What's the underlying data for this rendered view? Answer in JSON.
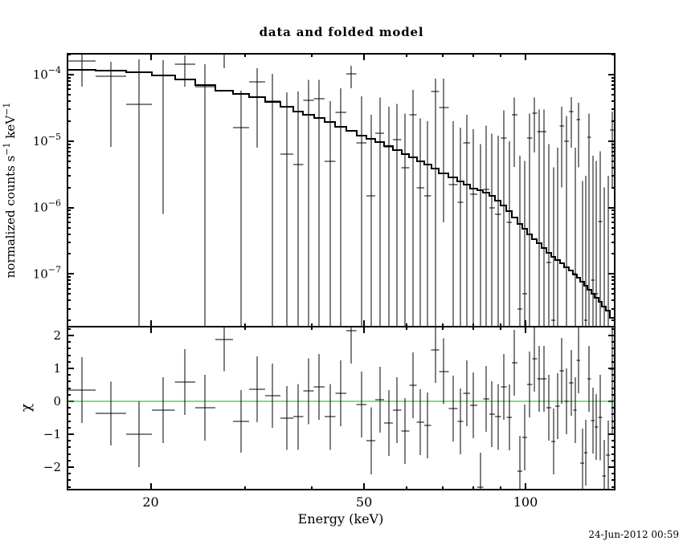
{
  "title": "data and folded model",
  "timestamp": "24-Jun-2012 00:59",
  "chart_data": {
    "type": "line",
    "subtype": "xray-spectrum-with-residuals",
    "title": "data and folded model",
    "xlabel": "Energy (keV)",
    "ylabel_top": {
      "pre": "normalized counts s",
      "sup1": "−1",
      "mid": " keV",
      "sup2": "−1"
    },
    "ylabel_bottom": "χ",
    "x_scale": "log",
    "xlim": [
      14.0,
      146.7
    ],
    "x_major_ticks": [
      20,
      50,
      100
    ],
    "x_major_labels": [
      "20",
      "50",
      "100"
    ],
    "x_minor_ticks": [
      30,
      40,
      60,
      70,
      80,
      90
    ],
    "top_panel": {
      "y_scale": "log",
      "ylim": [
        1.62e-08,
        0.000206
      ],
      "y_major_ticks": [
        0.0001,
        1e-05,
        1e-06,
        1e-07
      ],
      "y_major_labels": [
        [
          "10",
          "−4"
        ],
        [
          "10",
          "−5"
        ],
        [
          "10",
          "−6"
        ],
        [
          "10",
          "−7"
        ]
      ]
    },
    "bottom_panel": {
      "ylim": [
        -2.68,
        2.27
      ],
      "y_major_ticks": [
        2,
        1,
        0,
        -1,
        -2
      ],
      "y_major_labels": [
        "2",
        "1",
        "0",
        "−1",
        "−2"
      ],
      "y_minor_step": 0.2,
      "zero_line_value": 0,
      "zero_line_color": "#00C000"
    },
    "model_color": "#000000",
    "data_color": "#000000",
    "model_anchors": [
      [
        14,
        0.000117
      ],
      [
        16,
        0.000116
      ],
      [
        18,
        0.000113
      ],
      [
        20.5,
        0.000102
      ],
      [
        22,
        9.3e-05
      ],
      [
        24,
        8e-05
      ],
      [
        26,
        6.6e-05
      ],
      [
        28,
        5.5e-05
      ],
      [
        31.5,
        4.6e-05
      ],
      [
        34,
        3.8e-05
      ],
      [
        38,
        2.75e-05
      ],
      [
        42,
        2.1e-05
      ],
      [
        46,
        1.55e-05
      ],
      [
        50,
        1.18e-05
      ],
      [
        55,
        8.8e-06
      ],
      [
        60,
        6.3e-06
      ],
      [
        65,
        4.6e-06
      ],
      [
        70,
        3.4e-06
      ],
      [
        75,
        2.55e-06
      ],
      [
        80,
        1.95e-06
      ],
      [
        86,
        1.6e-06
      ],
      [
        92,
        1e-06
      ],
      [
        97,
        6e-07
      ],
      [
        102,
        3.9e-07
      ],
      [
        107,
        2.7e-07
      ],
      [
        112,
        1.9e-07
      ],
      [
        117,
        1.45e-07
      ],
      [
        122,
        1.1e-07
      ],
      [
        127,
        8e-08
      ],
      [
        132,
        5.6e-08
      ],
      [
        137,
        4e-08
      ],
      [
        142,
        2.9e-08
      ],
      [
        146.7,
        1.9e-08
      ]
    ],
    "data_points": [
      [
        14.0,
        15.8,
        0.00016,
        0.00021,
        6.6e-05
      ],
      [
        15.8,
        18.0,
        9.4e-05,
        0.000155,
        8.2e-06
      ],
      [
        18.0,
        20.1,
        3.6e-05,
        0.00017,
        0
      ],
      [
        20.1,
        22.2,
        9.7e-05,
        0.000165,
        8e-07
      ],
      [
        22.2,
        24.2,
        0.000144,
        0.000195,
        6.6e-05
      ],
      [
        24.2,
        26.4,
        6.6e-05,
        0.000144,
        0
      ],
      [
        26.4,
        28.5,
        0.00023,
        0.00026,
        0.000125
      ],
      [
        28.5,
        30.5,
        1.6e-05,
        5.7e-05,
        0
      ],
      [
        30.5,
        32.7,
        7.8e-05,
        0.000125,
        8e-06
      ],
      [
        32.7,
        34.9,
        4e-05,
        0.000103,
        0
      ],
      [
        34.9,
        36.9,
        6.4e-06,
        5.4e-05,
        0
      ],
      [
        36.9,
        38.5,
        4.4e-06,
        5.6e-05,
        0
      ],
      [
        38.5,
        40.3,
        4.1e-05,
        8.3e-05,
        0
      ],
      [
        40.3,
        42.2,
        4.3e-05,
        8.3e-05,
        0
      ],
      [
        42.2,
        44.2,
        5e-06,
        4e-05,
        0
      ],
      [
        44.2,
        46.3,
        2.7e-05,
        6.2e-05,
        0
      ],
      [
        46.3,
        48.4,
        0.000103,
        0.000136,
        6.2e-05
      ],
      [
        48.4,
        50.5,
        9.4e-06,
        4.7e-05,
        0
      ],
      [
        50.5,
        52.5,
        1.5e-06,
        2.5e-05,
        0
      ],
      [
        52.5,
        54.5,
        1.3e-05,
        4.5e-05,
        0
      ],
      [
        54.5,
        56.6,
        8.2e-06,
        3.3e-05,
        0
      ],
      [
        56.6,
        58.7,
        1.04e-05,
        3.6e-05,
        0
      ],
      [
        58.7,
        60.7,
        4e-06,
        2.6e-05,
        0
      ],
      [
        60.7,
        62.7,
        2.5e-05,
        5.9e-05,
        0
      ],
      [
        62.7,
        64.7,
        2e-06,
        2.2e-05,
        0
      ],
      [
        64.7,
        66.7,
        1.5e-06,
        2e-05,
        0
      ],
      [
        66.7,
        69.0,
        5.5e-05,
        8.7e-05,
        0
      ],
      [
        69.0,
        71.9,
        3.2e-05,
        8.7e-05,
        6e-07
      ],
      [
        71.9,
        74.7,
        2.2e-06,
        2e-05,
        0
      ],
      [
        74.7,
        76.6,
        1.2e-06,
        1.6e-05,
        0
      ],
      [
        76.6,
        78.8,
        9.5e-06,
        2.5e-05,
        0
      ],
      [
        78.8,
        81.3,
        1.6e-06,
        1.5e-05,
        0
      ],
      [
        81.3,
        83.4,
        1.5e-08,
        9e-06,
        0
      ],
      [
        83.4,
        85.6,
        1.9e-06,
        1.7e-05,
        0
      ],
      [
        85.6,
        87.7,
        1e-06,
        1.3e-05,
        0
      ],
      [
        87.7,
        90.0,
        8e-07,
        1.2e-05,
        0
      ],
      [
        90.0,
        92.2,
        1.1e-05,
        2.9e-05,
        0
      ],
      [
        92.2,
        94.3,
        6e-07,
        1e-05,
        0
      ],
      [
        94.3,
        96.6,
        2.5e-05,
        4.5e-05,
        4.1e-06
      ],
      [
        96.6,
        98.6,
        3e-08,
        6e-06,
        0
      ],
      [
        98.6,
        100.7,
        5e-08,
        5e-06,
        0
      ],
      [
        100.7,
        102.9,
        1.1e-05,
        2.6e-05,
        0
      ],
      [
        102.9,
        105.1,
        2.6e-05,
        4.5e-05,
        6.7e-06
      ],
      [
        105.1,
        107.1,
        1.4e-05,
        3e-05,
        0
      ],
      [
        107.1,
        109.4,
        1.4e-05,
        3e-05,
        0
      ],
      [
        109.4,
        111.7,
        1.5e-07,
        9e-06,
        0
      ],
      [
        111.7,
        113.6,
        2e-08,
        4e-06,
        0
      ],
      [
        113.6,
        115.8,
        1.6e-07,
        8e-06,
        0
      ],
      [
        115.8,
        118.1,
        1.7e-05,
        3.3e-05,
        2e-06
      ],
      [
        118.1,
        120.4,
        1e-05,
        2.4e-05,
        0
      ],
      [
        120.4,
        122.7,
        2.8e-05,
        4.6e-05,
        8e-06
      ],
      [
        122.7,
        124.6,
        1e-07,
        8e-06,
        0
      ],
      [
        124.6,
        126.5,
        2.1e-05,
        3.8e-05,
        4e-06
      ],
      [
        126.5,
        128.7,
        1e-08,
        2.5e-06,
        0
      ],
      [
        128.7,
        130.5,
        2e-08,
        3e-06,
        0
      ],
      [
        130.5,
        132.5,
        1.15e-05,
        2.6e-05,
        0
      ],
      [
        132.5,
        134.6,
        8e-08,
        6e-06,
        0
      ],
      [
        134.6,
        136.7,
        5e-08,
        5e-06,
        0
      ],
      [
        136.7,
        139.0,
        6.1e-07,
        7e-06,
        0
      ],
      [
        139.0,
        141.3,
        1e-08,
        2e-06,
        0
      ],
      [
        141.3,
        143.6,
        1e-08,
        3e-06,
        0
      ],
      [
        143.6,
        146.7,
        1.45e-05,
        2.8e-05,
        2e-06
      ]
    ],
    "residuals": [
      [
        14.0,
        15.8,
        0.34,
        1.0
      ],
      [
        15.8,
        18.0,
        -0.37,
        0.97
      ],
      [
        18.0,
        20.1,
        -1.0,
        1.0
      ],
      [
        20.1,
        22.2,
        -0.27,
        1.0
      ],
      [
        22.2,
        24.2,
        0.59,
        1.0
      ],
      [
        24.2,
        26.4,
        -0.2,
        1.0
      ],
      [
        26.4,
        28.5,
        1.88,
        0.97
      ],
      [
        28.5,
        30.5,
        -0.61,
        0.95
      ],
      [
        30.5,
        32.7,
        0.37,
        1.0
      ],
      [
        32.7,
        34.9,
        0.17,
        0.98
      ],
      [
        34.9,
        36.9,
        -0.51,
        0.97
      ],
      [
        36.9,
        38.5,
        -0.47,
        1.0
      ],
      [
        38.5,
        40.3,
        0.31,
        1.0
      ],
      [
        40.3,
        42.2,
        0.44,
        1.0
      ],
      [
        42.2,
        44.2,
        -0.47,
        1.0
      ],
      [
        44.2,
        46.3,
        0.24,
        1.0
      ],
      [
        46.3,
        48.4,
        2.15,
        1.0
      ],
      [
        48.4,
        50.5,
        -0.1,
        1.0
      ],
      [
        50.5,
        52.5,
        -1.2,
        1.02
      ],
      [
        52.5,
        54.5,
        0.05,
        1.0
      ],
      [
        54.5,
        56.6,
        -0.66,
        1.0
      ],
      [
        56.6,
        58.7,
        -0.27,
        1.0
      ],
      [
        58.7,
        60.7,
        -0.9,
        1.0
      ],
      [
        60.7,
        62.7,
        0.49,
        1.0
      ],
      [
        62.7,
        64.7,
        -0.63,
        1.0
      ],
      [
        64.7,
        66.7,
        -0.73,
        1.0
      ],
      [
        66.7,
        69.0,
        1.56,
        1.0
      ],
      [
        69.0,
        71.9,
        0.91,
        1.0
      ],
      [
        71.9,
        74.7,
        -0.22,
        1.0
      ],
      [
        74.7,
        76.6,
        -0.61,
        1.0
      ],
      [
        76.6,
        78.8,
        0.24,
        1.0
      ],
      [
        78.8,
        81.3,
        -0.12,
        1.0
      ],
      [
        81.3,
        83.4,
        -2.61,
        1.05
      ],
      [
        83.4,
        85.6,
        0.07,
        1.0
      ],
      [
        85.6,
        87.7,
        -0.39,
        1.0
      ],
      [
        87.7,
        90.0,
        -0.47,
        1.0
      ],
      [
        90.0,
        92.2,
        0.44,
        1.0
      ],
      [
        92.2,
        94.3,
        -0.49,
        1.0
      ],
      [
        94.3,
        96.6,
        1.17,
        1.0
      ],
      [
        96.6,
        98.6,
        -2.12,
        1.07
      ],
      [
        98.6,
        100.7,
        -1.1,
        1.0
      ],
      [
        100.7,
        102.9,
        0.51,
        1.0
      ],
      [
        102.9,
        105.1,
        1.29,
        1.0
      ],
      [
        105.1,
        107.1,
        0.68,
        1.0
      ],
      [
        107.1,
        109.4,
        0.68,
        1.0
      ],
      [
        109.4,
        111.7,
        -0.2,
        1.0
      ],
      [
        111.7,
        113.6,
        -1.22,
        1.0
      ],
      [
        113.6,
        115.8,
        -0.15,
        1.0
      ],
      [
        115.8,
        118.1,
        0.93,
        1.0
      ],
      [
        118.1,
        120.4,
        0.0,
        1.0
      ],
      [
        120.4,
        122.7,
        0.56,
        1.0
      ],
      [
        122.7,
        124.6,
        -0.27,
        1.0
      ],
      [
        124.6,
        126.5,
        1.24,
        1.0
      ],
      [
        126.5,
        128.7,
        -1.88,
        1.05
      ],
      [
        128.7,
        130.5,
        -1.56,
        1.0
      ],
      [
        130.5,
        132.5,
        0.68,
        1.0
      ],
      [
        132.5,
        134.6,
        -0.58,
        1.0
      ],
      [
        134.6,
        136.7,
        -0.78,
        1.0
      ],
      [
        136.7,
        139.0,
        -0.49,
        1.3
      ],
      [
        139.0,
        141.3,
        -2.27,
        1.1
      ],
      [
        141.3,
        143.6,
        -1.63,
        1.05
      ],
      [
        143.6,
        146.7,
        0.97,
        2.0
      ]
    ]
  }
}
